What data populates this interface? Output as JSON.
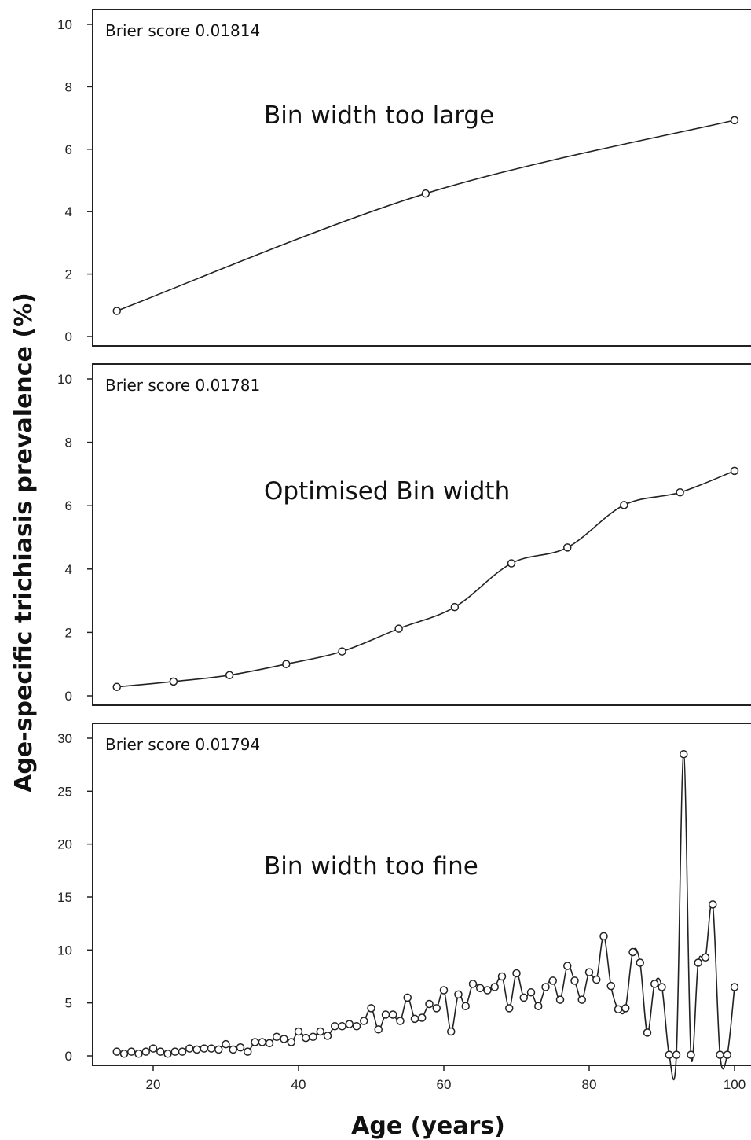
{
  "figure": {
    "ylabel": "Age-specific trichiasis prevalence (%)",
    "xlabel": "Age (years)",
    "x_ticks": [
      20,
      40,
      60,
      80,
      100
    ]
  },
  "chart_data": [
    {
      "type": "line",
      "annotation_score": "Brier score 0.01814",
      "annotation_label": "Bin width too large",
      "ylim": [
        0,
        10
      ],
      "yticks": [
        0,
        2,
        4,
        6,
        8,
        10
      ],
      "xlim": [
        11,
        102
      ],
      "x": [
        15,
        57.5,
        100
      ],
      "y": [
        0.82,
        4.58,
        6.93
      ]
    },
    {
      "type": "line",
      "annotation_score": "Brier score 0.01781",
      "annotation_label": "Optimised Bin width",
      "ylim": [
        0,
        10
      ],
      "yticks": [
        0,
        2,
        4,
        6,
        8,
        10
      ],
      "xlim": [
        11,
        102
      ],
      "x": [
        15,
        22.8,
        30.5,
        38.3,
        46,
        53.8,
        61.5,
        69.3,
        77,
        84.8,
        92.5,
        100
      ],
      "y": [
        0.28,
        0.45,
        0.65,
        1.0,
        1.4,
        2.12,
        2.8,
        4.18,
        4.68,
        6.02,
        6.42,
        7.1
      ]
    },
    {
      "type": "line",
      "annotation_score": "Brier score 0.01794",
      "annotation_label": "Bin width too fine",
      "ylim": [
        0,
        30
      ],
      "yticks": [
        0,
        5,
        10,
        15,
        20,
        25,
        30
      ],
      "xlim": [
        11,
        102
      ],
      "x": [
        15,
        16,
        17,
        18,
        19,
        20,
        21,
        22,
        23,
        24,
        25,
        26,
        27,
        28,
        29,
        30,
        31,
        32,
        33,
        34,
        35,
        36,
        37,
        38,
        39,
        40,
        41,
        42,
        43,
        44,
        45,
        46,
        47,
        48,
        49,
        50,
        51,
        52,
        53,
        54,
        55,
        56,
        57,
        58,
        59,
        60,
        61,
        62,
        63,
        64,
        65,
        66,
        67,
        68,
        69,
        70,
        71,
        72,
        73,
        74,
        75,
        76,
        77,
        78,
        79,
        80,
        81,
        82,
        83,
        84,
        85,
        86,
        87,
        88,
        89,
        90,
        91,
        92,
        93,
        94,
        95,
        96,
        97,
        98,
        99,
        100
      ],
      "y": [
        0.4,
        0.2,
        0.4,
        0.2,
        0.4,
        0.7,
        0.4,
        0.2,
        0.4,
        0.4,
        0.7,
        0.6,
        0.7,
        0.7,
        0.6,
        1.1,
        0.6,
        0.8,
        0.4,
        1.3,
        1.3,
        1.2,
        1.8,
        1.6,
        1.3,
        2.3,
        1.7,
        1.8,
        2.3,
        1.9,
        2.8,
        2.8,
        3.0,
        2.8,
        3.3,
        4.5,
        2.5,
        3.9,
        3.9,
        3.3,
        5.5,
        3.5,
        3.6,
        4.9,
        4.5,
        6.2,
        2.3,
        5.8,
        4.7,
        6.8,
        6.4,
        6.2,
        6.5,
        7.5,
        4.5,
        7.8,
        5.5,
        6.0,
        4.7,
        6.5,
        7.1,
        5.3,
        8.5,
        7.1,
        5.3,
        7.9,
        7.2,
        11.3,
        6.6,
        4.4,
        4.5,
        9.8,
        8.8,
        2.2,
        6.8,
        6.5,
        0.1,
        0.1,
        28.5,
        0.1,
        8.8,
        9.3,
        14.3,
        0.1,
        0.1,
        6.5
      ]
    }
  ]
}
